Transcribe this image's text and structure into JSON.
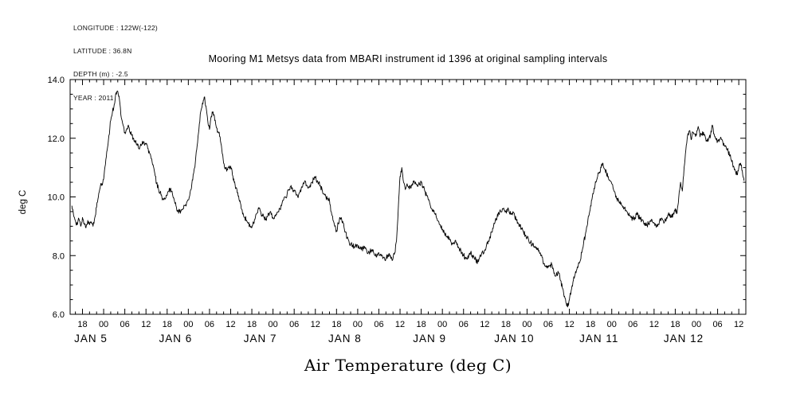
{
  "header": {
    "longitude": "LONGITUDE : 122W(-122)",
    "latitude": "LATITUDE : 36.8N",
    "depth": "DEPTH (m) : -2.5",
    "year": "YEAR : 2011"
  },
  "title": "Mooring M1 Metsys data from MBARI instrument id 1396 at original sampling intervals",
  "y_axis_label": "deg C",
  "x_axis_title": "Air Temperature (deg C)",
  "chart_data": {
    "type": "line",
    "title": "Mooring M1 Metsys data from MBARI instrument id 1396 at original sampling intervals",
    "ylabel": "deg C",
    "caption": "Air Temperature (deg C)",
    "x_unit": "hours since 2011-01-04 00:00",
    "x_range": [
      14.5,
      206
    ],
    "y_range": [
      6,
      14
    ],
    "y_major_tick_step": 2,
    "y_minor_tick_step": 0.5,
    "y_ticks": [
      {
        "value": 6,
        "label": "6.0"
      },
      {
        "value": 8,
        "label": "8.0"
      },
      {
        "value": 10,
        "label": "10.0"
      },
      {
        "value": 12,
        "label": "12.0"
      },
      {
        "value": 14,
        "label": "14.0"
      }
    ],
    "x_major_tick_step_hours": 6,
    "x_minor_tick_step_hours": 2,
    "hour_label_cycle": {
      "0": "00",
      "6": "06",
      "12": "12",
      "18": "18"
    },
    "day_labels": [
      {
        "hour": 24,
        "label": "JAN 5"
      },
      {
        "hour": 48,
        "label": "JAN 6"
      },
      {
        "hour": 72,
        "label": "JAN 7"
      },
      {
        "hour": 96,
        "label": "JAN 8"
      },
      {
        "hour": 120,
        "label": "JAN 9"
      },
      {
        "hour": 144,
        "label": "JAN 10"
      },
      {
        "hour": 168,
        "label": "JAN 11"
      },
      {
        "hour": 192,
        "label": "JAN 12"
      }
    ],
    "series": {
      "name": "Air Temperature",
      "t_start": 15,
      "t_step": 0.5,
      "values": [
        9.7,
        9.35,
        9.2,
        9.05,
        9.25,
        9.0,
        9.3,
        9.1,
        8.95,
        9.2,
        9.05,
        9.15,
        9.0,
        9.3,
        9.65,
        10.0,
        10.3,
        10.45,
        10.6,
        11.1,
        11.6,
        12.1,
        12.6,
        12.9,
        13.15,
        13.55,
        13.6,
        13.3,
        12.7,
        12.45,
        12.2,
        12.3,
        12.45,
        12.2,
        12.1,
        12.0,
        11.9,
        11.75,
        11.65,
        11.8,
        11.9,
        11.85,
        11.8,
        11.65,
        11.5,
        11.3,
        11.1,
        10.8,
        10.45,
        10.3,
        10.15,
        10.0,
        9.9,
        9.95,
        10.05,
        10.2,
        10.3,
        10.1,
        9.9,
        9.7,
        9.55,
        9.5,
        9.55,
        9.6,
        9.7,
        9.8,
        9.9,
        10.15,
        10.45,
        10.8,
        11.2,
        11.75,
        12.3,
        12.9,
        13.2,
        13.4,
        13.1,
        12.6,
        12.3,
        12.75,
        12.9,
        12.6,
        12.35,
        12.2,
        12.05,
        11.6,
        11.15,
        11.0,
        10.95,
        11.0,
        11.05,
        10.75,
        10.5,
        10.3,
        10.15,
        9.85,
        9.6,
        9.45,
        9.3,
        9.2,
        9.1,
        9.0,
        8.95,
        9.1,
        9.3,
        9.45,
        9.6,
        9.5,
        9.35,
        9.3,
        9.25,
        9.35,
        9.45,
        9.4,
        9.3,
        9.35,
        9.4,
        9.5,
        9.6,
        9.75,
        9.9,
        10.0,
        10.1,
        10.25,
        10.35,
        10.3,
        10.2,
        10.1,
        10.0,
        10.15,
        10.3,
        10.45,
        10.55,
        10.4,
        10.3,
        10.4,
        10.5,
        10.6,
        10.65,
        10.55,
        10.5,
        10.35,
        10.2,
        10.1,
        10.0,
        9.95,
        9.9,
        9.5,
        9.2,
        9.0,
        8.85,
        9.1,
        9.3,
        9.2,
        9.1,
        8.8,
        8.6,
        8.5,
        8.4,
        8.35,
        8.3,
        8.35,
        8.35,
        8.25,
        8.2,
        8.25,
        8.3,
        8.2,
        8.1,
        8.15,
        8.2,
        8.1,
        8.0,
        8.05,
        8.1,
        8.05,
        8.0,
        7.95,
        7.9,
        8.0,
        8.05,
        7.95,
        7.9,
        8.1,
        8.5,
        9.6,
        10.7,
        11.0,
        10.5,
        10.25,
        10.45,
        10.35,
        10.3,
        10.45,
        10.55,
        10.45,
        10.35,
        10.45,
        10.5,
        10.35,
        10.2,
        10.05,
        9.9,
        9.75,
        9.6,
        9.5,
        9.4,
        9.25,
        9.15,
        9.0,
        8.9,
        8.8,
        8.7,
        8.6,
        8.55,
        8.45,
        8.4,
        8.45,
        8.45,
        8.3,
        8.2,
        8.1,
        8.0,
        7.95,
        7.9,
        8.0,
        8.1,
        8.0,
        7.95,
        7.85,
        7.8,
        7.9,
        8.0,
        8.1,
        8.2,
        8.35,
        8.5,
        8.65,
        8.8,
        9.0,
        9.2,
        9.3,
        9.45,
        9.5,
        9.6,
        9.55,
        9.5,
        9.6,
        9.45,
        9.4,
        9.5,
        9.35,
        9.2,
        9.1,
        9.0,
        8.9,
        8.8,
        8.7,
        8.6,
        8.5,
        8.45,
        8.35,
        8.3,
        8.25,
        8.2,
        8.1,
        8.0,
        7.8,
        7.65,
        7.6,
        7.6,
        7.65,
        7.7,
        7.5,
        7.3,
        7.35,
        7.4,
        7.15,
        6.9,
        6.6,
        6.4,
        6.25,
        6.5,
        6.8,
        7.1,
        7.3,
        7.5,
        7.65,
        7.8,
        8.1,
        8.4,
        8.7,
        9.0,
        9.35,
        9.7,
        10.0,
        10.3,
        10.5,
        10.7,
        10.85,
        11.0,
        11.15,
        10.95,
        10.8,
        10.7,
        10.55,
        10.45,
        10.25,
        10.1,
        9.95,
        9.85,
        9.75,
        9.7,
        9.6,
        9.55,
        9.45,
        9.35,
        9.3,
        9.25,
        9.3,
        9.4,
        9.35,
        9.3,
        9.2,
        9.15,
        9.1,
        9.05,
        9.1,
        9.2,
        9.15,
        9.1,
        9.05,
        9.0,
        9.15,
        9.25,
        9.2,
        9.15,
        9.3,
        9.4,
        9.35,
        9.3,
        9.45,
        9.6,
        9.45,
        10.0,
        10.5,
        10.2,
        11.0,
        11.6,
        12.1,
        12.25,
        11.95,
        12.2,
        12.15,
        12.1,
        12.4,
        12.05,
        12.15,
        12.2,
        12.05,
        11.9,
        12.0,
        12.1,
        12.45,
        12.15,
        12.0,
        11.9,
        11.95,
        12.0,
        11.85,
        11.75,
        11.65,
        11.55,
        11.4,
        11.2,
        11.05,
        10.9,
        10.75,
        11.0,
        11.15,
        10.9,
        10.55
      ]
    },
    "noise": {
      "amplitude": 0.09,
      "substeps": 4
    },
    "line_color": "#000000",
    "background": "#ffffff"
  }
}
